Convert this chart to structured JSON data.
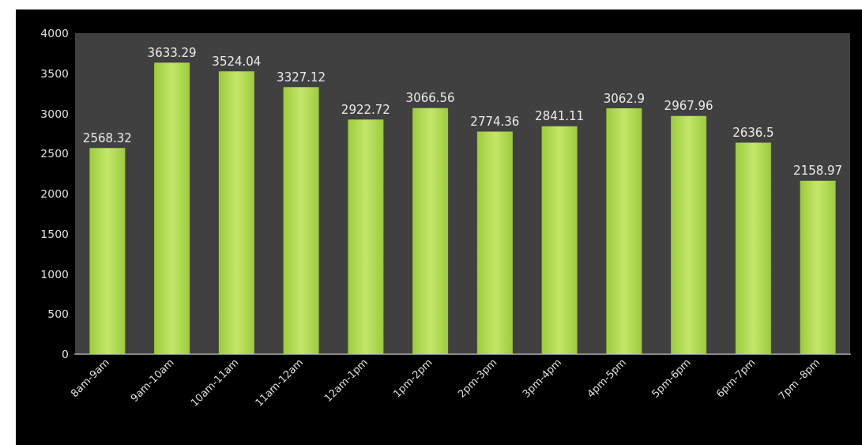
{
  "chart_data": {
    "type": "bar",
    "categories": [
      "8am-9am",
      "9am-10am",
      "10am-11am",
      "11am-12am",
      "12am-1pm",
      "1pm-2pm",
      "2pm-3pm",
      "3pm-4pm",
      "4pm-5pm",
      "5pm-6pm",
      "6pm-7pm",
      "7pm -8pm"
    ],
    "values": [
      2568.32,
      3633.29,
      3524.04,
      3327.12,
      2922.72,
      3066.56,
      2774.36,
      2841.11,
      3062.9,
      2967.96,
      2636.5,
      2158.97
    ],
    "color": "#9ccc3c",
    "ylim": [
      0,
      4000
    ],
    "yticks": [
      0,
      500,
      1000,
      1500,
      2000,
      2500,
      3000,
      3500,
      4000
    ],
    "data_labels": true,
    "grid": false
  }
}
